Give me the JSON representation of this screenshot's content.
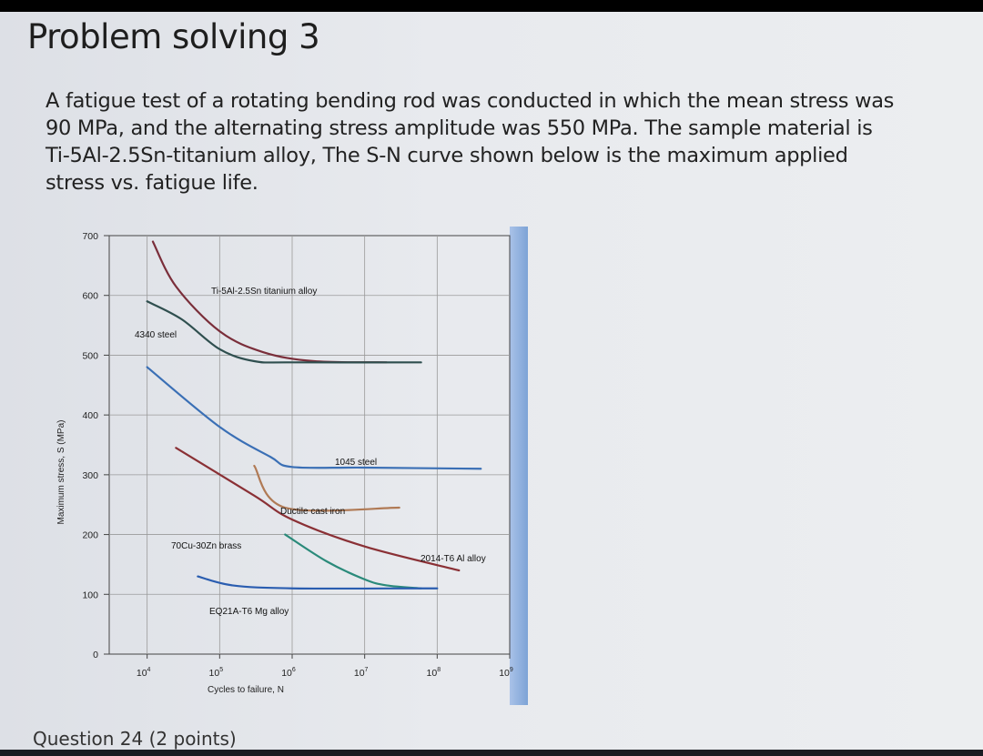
{
  "page": {
    "title": "Problem solving 3",
    "problem_text": "A fatigue test of a rotating bending rod was conducted in which the mean stress was 90 MPa, and the alternating stress amplitude was 550 MPa. The sample material is Ti-5Al-2.5Sn-titanium alloy, The S-N curve shown below is the maximum applied stress vs. fatigue life.",
    "question_label": "Question 24 (2 points)"
  },
  "chart_data": {
    "type": "line",
    "title": "",
    "xlabel": "Cycles to failure, N",
    "ylabel": "Maximum stress, S (MPa)",
    "x_scale": "log",
    "xlim": [
      3000,
      1000000000
    ],
    "ylim": [
      0,
      700
    ],
    "y_ticks": [
      "0",
      "100",
      "200",
      "300",
      "400",
      "500",
      "600",
      "700"
    ],
    "x_ticks": [
      {
        "base": "10",
        "exp": "4",
        "value": 10000
      },
      {
        "base": "10",
        "exp": "5",
        "value": 100000
      },
      {
        "base": "10",
        "exp": "6",
        "value": 1000000
      },
      {
        "base": "10",
        "exp": "7",
        "value": 10000000
      },
      {
        "base": "10",
        "exp": "8",
        "value": 100000000
      },
      {
        "base": "10",
        "exp": "9",
        "value": 1000000000
      }
    ],
    "grid": true,
    "series": [
      {
        "name": "Ti-5Al-2.5Sn titanium alloy",
        "color": "#7a2e3a",
        "points": [
          [
            12000,
            690
          ],
          [
            25000,
            615
          ],
          [
            100000,
            540
          ],
          [
            400000,
            505
          ],
          [
            2000000,
            490
          ],
          [
            20000000,
            488
          ]
        ]
      },
      {
        "name": "4340 steel",
        "color": "#2f4f4f",
        "points": [
          [
            10000,
            590
          ],
          [
            30000,
            560
          ],
          [
            100000,
            510
          ],
          [
            300000,
            490
          ],
          [
            1000000,
            488
          ],
          [
            60000000,
            488
          ]
        ]
      },
      {
        "name": "1045 steel",
        "color": "#3a6fb5",
        "points": [
          [
            10000,
            480
          ],
          [
            100000,
            380
          ],
          [
            500000,
            330
          ],
          [
            1000000,
            313
          ],
          [
            10000000,
            312
          ],
          [
            400000000,
            310
          ]
        ]
      },
      {
        "name": "Ductile cast iron",
        "color": "#b07a55",
        "points": [
          [
            300000,
            315
          ],
          [
            800000,
            245
          ],
          [
            30000000,
            245
          ]
        ]
      },
      {
        "name": "2014-T6 Al alloy",
        "color": "#8a3035",
        "points": [
          [
            25000,
            345
          ],
          [
            300000,
            265
          ],
          [
            1000000,
            225
          ],
          [
            10000000,
            180
          ],
          [
            200000000,
            140
          ]
        ]
      },
      {
        "name": "70Cu-30Zn brass",
        "color": "#2a8a7a",
        "points": [
          [
            800000,
            200
          ],
          [
            3000000,
            155
          ],
          [
            10000000,
            125
          ],
          [
            20000000,
            115
          ],
          [
            60000000,
            110
          ]
        ]
      },
      {
        "name": "EQ21A-T6 Mg alloy",
        "color": "#2a5db0",
        "points": [
          [
            50000,
            130
          ],
          [
            150000,
            115
          ],
          [
            1000000,
            110
          ],
          [
            50000000,
            110
          ],
          [
            100000000,
            110
          ]
        ]
      }
    ]
  }
}
